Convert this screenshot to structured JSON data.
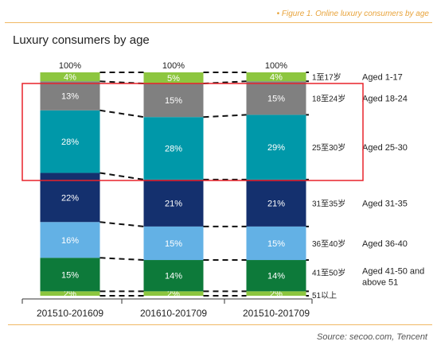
{
  "header": {
    "caption": "• Figure 1. Online luxury consumers by age"
  },
  "source": "Source: secoo.com, Tencent",
  "colors": {
    "age_1_17": "#8dc63f",
    "age_18_24": "#808080",
    "age_25_30": "#0098a9",
    "age_31_35": "#14306e",
    "age_36_40": "#63b1e5",
    "age_41_50": "#0d7a3a",
    "age_51_up": "#8dc63f",
    "highlight": "#e8222a"
  },
  "chart_data": {
    "type": "bar",
    "stacked": true,
    "title": "Luxury consumers by age",
    "categories": [
      "201510-201609",
      "201610-201709",
      "201510-201709"
    ],
    "totals": [
      "100%",
      "100%",
      "100%"
    ],
    "series": [
      {
        "name_cn": "51以上",
        "name_en": "",
        "values": [
          2,
          2,
          2
        ],
        "labels": [
          "2%",
          "2%",
          "2%"
        ],
        "color": "#8dc63f",
        "label_color": "#ffffff"
      },
      {
        "name_cn": "41至50岁",
        "name_en": "Aged 41-50 and above 51",
        "values": [
          15,
          14,
          14
        ],
        "labels": [
          "15%",
          "14%",
          "14%"
        ],
        "color": "#0d7a3a",
        "label_color": "#ffffff"
      },
      {
        "name_cn": "36至40岁",
        "name_en": "Aged 36-40",
        "values": [
          16,
          15,
          15
        ],
        "labels": [
          "16%",
          "15%",
          "15%"
        ],
        "color": "#63b1e5",
        "label_color": "#ffffff"
      },
      {
        "name_cn": "31至35岁",
        "name_en": "Aged 31-35",
        "values": [
          22,
          21,
          21
        ],
        "labels": [
          "22%",
          "21%",
          "21%"
        ],
        "color": "#14306e",
        "label_color": "#ffffff"
      },
      {
        "name_cn": "25至30岁",
        "name_en": "Aged 25-30",
        "values": [
          28,
          28,
          29
        ],
        "labels": [
          "28%",
          "28%",
          "29%"
        ],
        "color": "#0098a9",
        "label_color": "#ffffff"
      },
      {
        "name_cn": "18至24岁",
        "name_en": "Aged 18-24",
        "values": [
          13,
          15,
          15
        ],
        "labels": [
          "13%",
          "15%",
          "15%"
        ],
        "color": "#808080",
        "label_color": "#ffffff"
      },
      {
        "name_cn": "1至17岁",
        "name_en": "Aged 1-17",
        "values": [
          4,
          5,
          4
        ],
        "labels": [
          "4%",
          "5%",
          "4%"
        ],
        "color": "#8dc63f",
        "label_color": "#ffffff"
      }
    ],
    "ylim": [
      0,
      100
    ],
    "grid": false,
    "legend": "right"
  }
}
